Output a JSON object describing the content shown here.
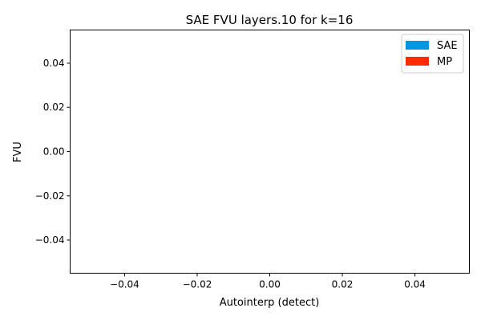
{
  "chart_data": {
    "type": "scatter",
    "title": "SAE FVU layers.10 for k=16",
    "xlabel": "Autointerp (detect)",
    "ylabel": "FVU",
    "xlim": [
      -0.055,
      0.055
    ],
    "ylim": [
      -0.055,
      0.055
    ],
    "xticks": [
      -0.04,
      -0.02,
      0.0,
      0.02,
      0.04
    ],
    "xtick_labels": [
      "−0.04",
      "−0.02",
      "0.00",
      "0.02",
      "0.04"
    ],
    "yticks": [
      0.04,
      0.02,
      0.0,
      -0.02,
      -0.04
    ],
    "ytick_labels": [
      "0.04",
      "0.02",
      "0.00",
      "−0.02",
      "−0.04"
    ],
    "grid": false,
    "legend_position": "top-right",
    "series": [
      {
        "name": "SAE",
        "color": "#0096e6",
        "points": []
      },
      {
        "name": "MP",
        "color": "#ff2a00",
        "points": []
      }
    ]
  }
}
